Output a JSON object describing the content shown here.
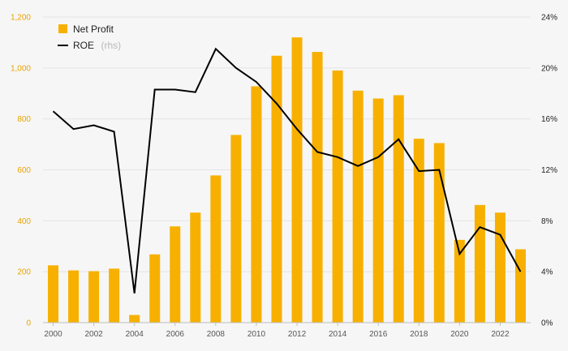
{
  "chart_data": {
    "type": "bar+line",
    "title": "",
    "categories": [
      "2000",
      "2001",
      "2002",
      "2003",
      "2004",
      "2005",
      "2006",
      "2007",
      "2008",
      "2009",
      "2010",
      "2011",
      "2012",
      "2013",
      "2014",
      "2015",
      "2016",
      "2017",
      "2018",
      "2019",
      "2020",
      "2021",
      "2022",
      "2023"
    ],
    "x_tick_labels": [
      "2000",
      "2002",
      "2004",
      "2006",
      "2008",
      "2010",
      "2012",
      "2014",
      "2016",
      "2018",
      "2020",
      "2022"
    ],
    "series": [
      {
        "name": "Net Profit",
        "type": "bar",
        "axis": "left",
        "color": "#f7b000",
        "values": [
          225,
          205,
          202,
          212,
          30,
          268,
          378,
          432,
          578,
          737,
          928,
          1048,
          1120,
          1063,
          990,
          911,
          880,
          893,
          722,
          705,
          325,
          462,
          432,
          288
        ]
      },
      {
        "name": "ROE",
        "axis_note": "(rhs)",
        "type": "line",
        "axis": "right",
        "color": "#000000",
        "values": [
          16.6,
          15.2,
          15.5,
          15.0,
          2.3,
          18.3,
          18.3,
          18.1,
          21.5,
          20.0,
          18.9,
          17.2,
          15.2,
          13.4,
          13.0,
          12.3,
          13.0,
          14.4,
          11.9,
          12.0,
          5.4,
          7.5,
          6.9,
          4.0
        ]
      }
    ],
    "y_left": {
      "ylim": [
        0,
        1200
      ],
      "ticks": [
        0,
        200,
        400,
        600,
        800,
        1000,
        1200
      ],
      "tick_labels": [
        "0",
        "200",
        "400",
        "600",
        "800",
        "1,000",
        "1,200"
      ]
    },
    "y_right": {
      "ylim": [
        0,
        24
      ],
      "ticks": [
        0,
        4,
        8,
        12,
        16,
        20,
        24
      ],
      "tick_labels": [
        "0%",
        "4%",
        "8%",
        "12%",
        "16%",
        "20%",
        "24%"
      ]
    },
    "legend": {
      "position": "top-left"
    },
    "grid": true
  }
}
